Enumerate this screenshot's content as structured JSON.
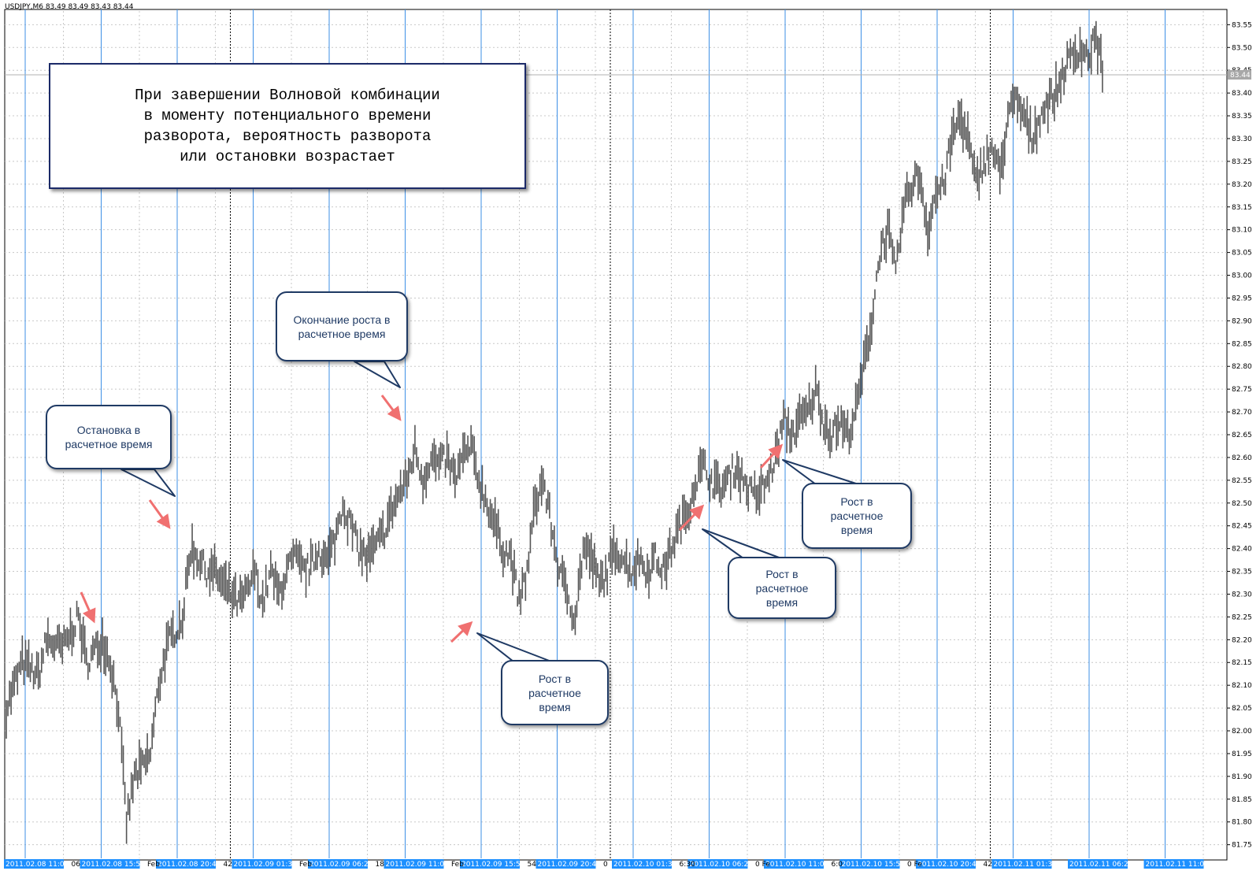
{
  "window": {
    "title": "USDJPY,M6  83.49 83.49 83.43 83.44"
  },
  "chart_data": {
    "type": "bar",
    "symbol": "USDJPY,M6",
    "ohlc_header": "83.49 83.49 83.43 83.44",
    "current_price_label": "83.44",
    "ylim": [
      81.72,
      83.58
    ],
    "y_ticks": [
      "83.55",
      "83.50",
      "83.45",
      "83.40",
      "83.35",
      "83.30",
      "83.25",
      "83.20",
      "83.15",
      "83.10",
      "83.05",
      "83.00",
      "82.95",
      "82.90",
      "82.85",
      "82.80",
      "82.75",
      "82.70",
      "82.65",
      "82.60",
      "82.55",
      "82.50",
      "82.45",
      "82.40",
      "82.35",
      "82.30",
      "82.25",
      "82.20",
      "82.15",
      "82.10",
      "82.05",
      "82.00",
      "81.95",
      "81.90",
      "81.85",
      "81.80",
      "81.75"
    ],
    "x_labels": [
      {
        "col": 0,
        "text": "2011.02.08 11:08"
      },
      {
        "col": 1,
        "text": "2011.02.08 15:56"
      },
      {
        "col": 2,
        "text": "2011.02.08 20:44"
      },
      {
        "col": 3,
        "text": "2011.02.09 01:32"
      },
      {
        "col": 4,
        "text": "2011.02.09 06:20"
      },
      {
        "col": 5,
        "text": "2011.02.09 11:08"
      },
      {
        "col": 6,
        "text": "2011.02.09 15:56"
      },
      {
        "col": 7,
        "text": "2011.02.09 20:44"
      },
      {
        "col": 8,
        "text": "2011.02.10 01:32"
      },
      {
        "col": 9,
        "text": "2011.02.10 06:20"
      },
      {
        "col": 10,
        "text": "2011.02.10 11:08"
      },
      {
        "col": 11,
        "text": "2011.02.10 15:56"
      },
      {
        "col": 12,
        "text": "2011.02.10 20:44"
      },
      {
        "col": 13,
        "text": "2011.02.11 01:32"
      },
      {
        "col": 14,
        "text": "2011.02.11 06:20"
      },
      {
        "col": 15,
        "text": "2011.02.11 11:08"
      }
    ],
    "x_label_fragments": [
      {
        "col": 1,
        "text": "06"
      },
      {
        "col": 2,
        "text": "Feb"
      },
      {
        "col": 3,
        "text": "42"
      },
      {
        "col": 4,
        "text": "Feb"
      },
      {
        "col": 5,
        "text": "18"
      },
      {
        "col": 6,
        "text": "Feb"
      },
      {
        "col": 7,
        "text": "54"
      },
      {
        "col": 8,
        "text": "0"
      },
      {
        "col": 9,
        "text": "6:30"
      },
      {
        "col": 10,
        "text": "0 Fe"
      },
      {
        "col": 11,
        "text": "6:0"
      },
      {
        "col": 12,
        "text": "0 Fe"
      },
      {
        "col": 13,
        "text": "42"
      }
    ],
    "anchors": [
      [
        0,
        82.05
      ],
      [
        2,
        82.15
      ],
      [
        4,
        82.12
      ],
      [
        5,
        82.2
      ],
      [
        7,
        82.18
      ],
      [
        9,
        82.25
      ],
      [
        10,
        82.15
      ],
      [
        12,
        82.2
      ],
      [
        13,
        82.15
      ],
      [
        14,
        82.05
      ],
      [
        15,
        81.8
      ],
      [
        16,
        81.9
      ],
      [
        17,
        81.92
      ],
      [
        18,
        81.95
      ],
      [
        19,
        82.1
      ],
      [
        20,
        82.18
      ],
      [
        21,
        82.22
      ],
      [
        22,
        82.25
      ],
      [
        23,
        82.4
      ],
      [
        24,
        82.38
      ],
      [
        25,
        82.35
      ],
      [
        26,
        82.35
      ],
      [
        27,
        82.32
      ],
      [
        28,
        82.3
      ],
      [
        29,
        82.28
      ],
      [
        30,
        82.3
      ],
      [
        31,
        82.35
      ],
      [
        32,
        82.28
      ],
      [
        33,
        82.35
      ],
      [
        34,
        82.3
      ],
      [
        35,
        82.35
      ],
      [
        36,
        82.38
      ],
      [
        37,
        82.35
      ],
      [
        38,
        82.36
      ],
      [
        39,
        82.4
      ],
      [
        40,
        82.37
      ],
      [
        41,
        82.42
      ],
      [
        42,
        82.5
      ],
      [
        43,
        82.45
      ],
      [
        44,
        82.4
      ],
      [
        45,
        82.38
      ],
      [
        46,
        82.4
      ],
      [
        47,
        82.43
      ],
      [
        48,
        82.48
      ],
      [
        49,
        82.52
      ],
      [
        50,
        82.55
      ],
      [
        51,
        82.62
      ],
      [
        52,
        82.55
      ],
      [
        53,
        82.6
      ],
      [
        54,
        82.58
      ],
      [
        55,
        82.6
      ],
      [
        56,
        82.55
      ],
      [
        57,
        82.6
      ],
      [
        58,
        82.62
      ],
      [
        59,
        82.55
      ],
      [
        60,
        82.5
      ],
      [
        61,
        82.45
      ],
      [
        62,
        82.4
      ],
      [
        63,
        82.38
      ],
      [
        64,
        82.28
      ],
      [
        65,
        82.35
      ],
      [
        66,
        82.5
      ],
      [
        67,
        82.55
      ],
      [
        68,
        82.45
      ],
      [
        69,
        82.35
      ],
      [
        70,
        82.3
      ],
      [
        71,
        82.25
      ],
      [
        72,
        82.4
      ],
      [
        73,
        82.38
      ],
      [
        74,
        82.32
      ],
      [
        75,
        82.35
      ],
      [
        76,
        82.4
      ],
      [
        77,
        82.38
      ],
      [
        78,
        82.35
      ],
      [
        79,
        82.38
      ],
      [
        80,
        82.35
      ],
      [
        81,
        82.38
      ],
      [
        82,
        82.35
      ],
      [
        83,
        82.4
      ],
      [
        84,
        82.45
      ],
      [
        85,
        82.48
      ],
      [
        86,
        82.55
      ],
      [
        87,
        82.58
      ],
      [
        88,
        82.55
      ],
      [
        89,
        82.53
      ],
      [
        90,
        82.55
      ],
      [
        91,
        82.58
      ],
      [
        92,
        82.55
      ],
      [
        93,
        82.52
      ],
      [
        94,
        82.52
      ],
      [
        95,
        82.55
      ],
      [
        96,
        82.6
      ],
      [
        97,
        82.68
      ],
      [
        98,
        82.65
      ],
      [
        99,
        82.68
      ],
      [
        100,
        82.7
      ],
      [
        101,
        82.75
      ],
      [
        102,
        82.68
      ],
      [
        103,
        82.65
      ],
      [
        104,
        82.68
      ],
      [
        105,
        82.65
      ],
      [
        106,
        82.7
      ],
      [
        107,
        82.8
      ],
      [
        108,
        82.9
      ],
      [
        109,
        83.05
      ],
      [
        110,
        83.1
      ],
      [
        111,
        83.0
      ],
      [
        112,
        83.15
      ],
      [
        113,
        83.2
      ],
      [
        114,
        83.22
      ],
      [
        115,
        83.1
      ],
      [
        116,
        83.18
      ],
      [
        117,
        83.2
      ],
      [
        118,
        83.3
      ],
      [
        119,
        83.35
      ],
      [
        120,
        83.3
      ],
      [
        121,
        83.2
      ],
      [
        122,
        83.25
      ],
      [
        123,
        83.28
      ],
      [
        124,
        83.22
      ],
      [
        125,
        83.35
      ],
      [
        126,
        83.38
      ],
      [
        127,
        83.35
      ],
      [
        128,
        83.3
      ],
      [
        129,
        83.35
      ],
      [
        130,
        83.38
      ],
      [
        131,
        83.4
      ],
      [
        132,
        83.45
      ],
      [
        133,
        83.48
      ],
      [
        134,
        83.5
      ],
      [
        135,
        83.48
      ],
      [
        136,
        83.52
      ],
      [
        137,
        83.44
      ]
    ]
  },
  "annotations": {
    "main_box": "При завершении Волновой комбинации\nв моменту потенциального времени\nразворота, вероятность разворота\nили остановки возрастает",
    "callouts": [
      {
        "id": "stop",
        "text": "Остановка в\nрасчетное время"
      },
      {
        "id": "end-growth",
        "text": "Окончание роста в\nрасчетное время"
      },
      {
        "id": "growth-1",
        "text": "Рост в\nрасчетное\nвремя"
      },
      {
        "id": "growth-2",
        "text": "Рост в\nрасчетное\nвремя"
      },
      {
        "id": "growth-3",
        "text": "Рост в\nрасчетное\nвремя"
      }
    ]
  },
  "colors": {
    "bars": "#555555",
    "vline": "#3d8fe6",
    "grid": "#c8c8c8",
    "label_bg": "#1e90ff",
    "price_label_bg": "#a8a8a8",
    "callout_border": "#1f3a64",
    "arrow": "#f07070"
  }
}
